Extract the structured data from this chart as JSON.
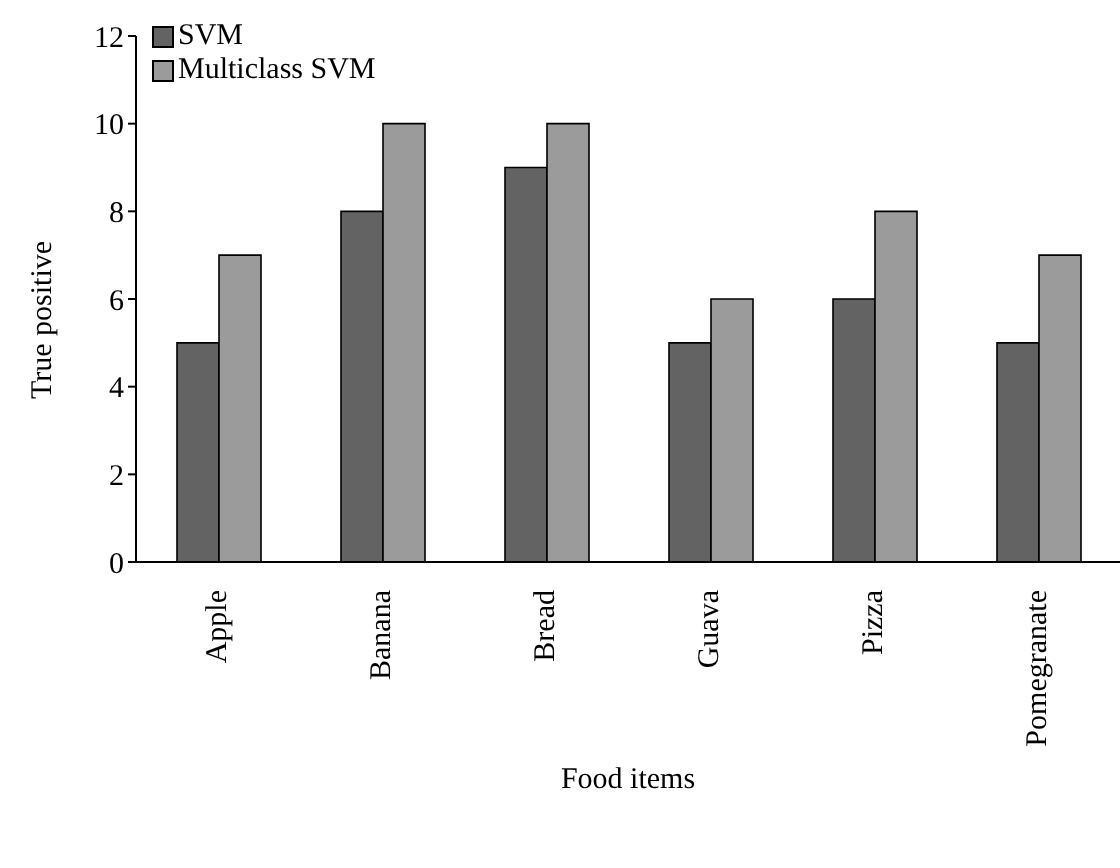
{
  "chart_data": {
    "type": "bar",
    "xlabel": "Food items",
    "ylabel": "True positive",
    "categories": [
      "Apple",
      "Banana",
      "Bread",
      "Guava",
      "Pizza",
      "Pomegranate"
    ],
    "series": [
      {
        "name": "SVM",
        "color": "#636363",
        "values": [
          5,
          8,
          9,
          5,
          6,
          5
        ]
      },
      {
        "name": "Multiclass SVM",
        "color": "#9b9b9b",
        "values": [
          7,
          10,
          10,
          6,
          8,
          7
        ]
      }
    ],
    "ylim": [
      0,
      12
    ],
    "yticks": [
      0,
      2,
      4,
      6,
      8,
      10,
      12
    ],
    "grid": false,
    "legend": "top left"
  }
}
